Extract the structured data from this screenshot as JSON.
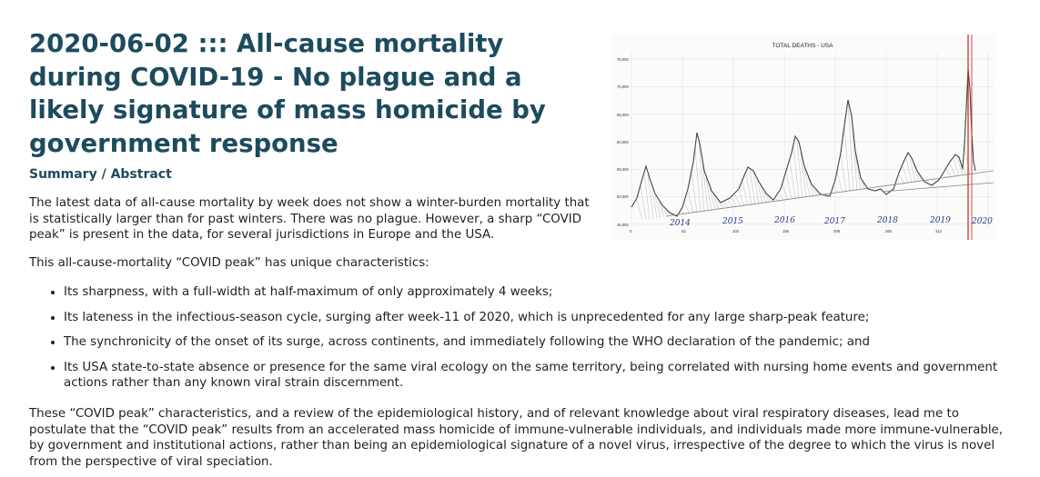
{
  "article": {
    "title": "2020-06-02 ::: All-cause mortality during COVID-19 - No plague and a likely signature of mass homicide by government response",
    "section_heading": "Summary / Abstract",
    "paragraph1": "The latest data of all-cause mortality by week does not show a winter-burden mortality that is statistically larger than for past winters. There was no plague. However, a sharp “COVID peak” is present in the data, for several jurisdictions in Europe and the USA.",
    "paragraph2": "This all-cause-mortality “COVID peak” has unique characteristics:",
    "bullets": [
      "Its sharpness, with a full-width at half-maximum of only approximately 4 weeks;",
      "Its lateness in the infectious-season cycle, surging after week-11 of 2020, which is unprecedented for any large sharp-peak feature;",
      "The synchronicity of the onset of its surge, across continents, and immediately following the WHO declaration of the pandemic; and",
      "Its USA state-to-state absence or presence for the same viral ecology on the same territory, being correlated with nursing home events and government actions rather than any known viral strain discernment."
    ],
    "paragraph3": "These “COVID peak” characteristics, and a review of the epidemiological history, and of relevant knowledge about viral respiratory diseases, lead me to postulate that the “COVID peak” results from an accelerated mass homicide of immune-vulnerable individuals, and individuals made more immune-vulnerable, by government and institutional actions, rather than being an epidemiological signature of a novel virus, irrespective of the degree to which the virus is novel from the perspective of viral speciation."
  },
  "figure": {
    "title": "TOTAL DEATHS - USA",
    "y_ticks": [
      "75,000",
      "70,000",
      "65,000",
      "60,000",
      "55,000",
      "50,000",
      "45,000"
    ],
    "x_ticks": [
      "0",
      "52",
      "104",
      "156",
      "208",
      "260",
      "312"
    ],
    "year_labels": [
      "2014",
      "2015",
      "2016",
      "2017",
      "2018",
      "2019",
      "2020"
    ],
    "colors": {
      "line": "#444444",
      "handwriting": "#2b3b8c",
      "marker": "#cc2222"
    }
  }
}
